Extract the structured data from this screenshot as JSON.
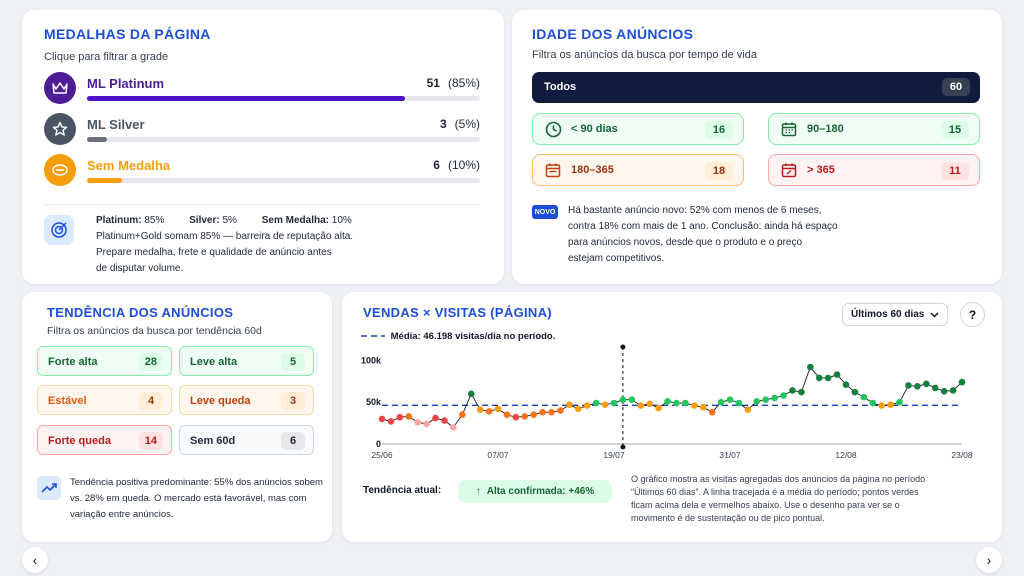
{
  "medals": {
    "title": "MEDALHAS DA PÁGINA",
    "subtitle": "Clique para filtrar a grade",
    "items": [
      {
        "name": "ML Platinum",
        "count": "51",
        "pct": "(85%)",
        "fraction": 0.85,
        "color": "#4c1d95",
        "fill": "#4f16c8"
      },
      {
        "name": "ML Silver",
        "count": "3",
        "pct": "(5%)",
        "fraction": 0.05,
        "color": "#4b5563",
        "fill": "#6b7280"
      },
      {
        "name": "Sem Medalha",
        "count": "6",
        "pct": "(10%)",
        "fraction": 0.1,
        "color": "#f59e0b",
        "fill": "#f59e0b"
      }
    ],
    "summary": {
      "platinum_label": "Platinum:",
      "platinum_value": "85%",
      "silver_label": "Silver:",
      "silver_value": "5%",
      "none_label": "Sem Medalha:",
      "none_value": "10%",
      "line1": "Platinum+Gold somam 85% — barreira de reputação alta.",
      "line2": "Prepare medalha, frete e qualidade de anúncio antes",
      "line3": "de disputar volume."
    },
    "icons": [
      "crown-icon",
      "star-icon",
      "no-medal-icon",
      "target-icon"
    ]
  },
  "age": {
    "title": "IDADE DOS ANÚNCIOS",
    "subtitle": "Filtra os anúncios da busca por tempo de vida",
    "all": {
      "label": "Todos",
      "count": "60"
    },
    "buckets": [
      {
        "label": "< 90 dias",
        "count": "16"
      },
      {
        "label": "90–180",
        "count": "15"
      },
      {
        "label": "180–365",
        "count": "18"
      },
      {
        "label": "> 365",
        "count": "11"
      }
    ],
    "badge": "NOVO",
    "note": [
      "Há bastante anúncio novo: 52% com menos de 6 meses,",
      "contra 18% com mais de 1 ano. Conclusão: ainda há espaço",
      "para anúncios novos, desde que o produto e o preço",
      "estejam competitivos."
    ]
  },
  "trend": {
    "title": "TENDÊNCIA DOS ANÚNCIOS",
    "subtitle": "Filtra os anúncios da busca por tendência 60d",
    "buttons": [
      {
        "label": "Forte alta",
        "count": "28"
      },
      {
        "label": "Leve alta",
        "count": "5"
      },
      {
        "label": "Estável",
        "count": "4"
      },
      {
        "label": "Leve queda",
        "count": "3"
      },
      {
        "label": "Forte queda",
        "count": "14"
      },
      {
        "label": "Sem 60d",
        "count": "6"
      }
    ],
    "note": [
      "Tendência positiva predominante: 55% dos anúncios sobem",
      "vs. 28% em queda. O mercado está favorável, mas com",
      "variação entre anúncios."
    ]
  },
  "sales": {
    "title": "VENDAS × VISITAS (PÁGINA)",
    "period_select": "Últimos 60 dias",
    "help": "?",
    "legend_label": "Média:",
    "legend_value": "46.198 visitas/dia no período.",
    "trend_label": "Tendência atual:",
    "trend_badge": "Alta confirmada: +46%",
    "note": [
      "O gráfico mostra as visitas agregadas dos anúncios da página no período",
      "“Últimos 60 dias”. A linha tracejada é a média do período; pontos verdes",
      "ficam acima dela e vermelhos abaixo. Use o desenho para ver se o",
      "movimento é de sustentação ou de pico pontual."
    ]
  },
  "chart_data": {
    "type": "line",
    "x_ticks": [
      "25/06",
      "07/07",
      "19/07",
      "31/07",
      "12/08",
      "23/08"
    ],
    "y_ticks": [
      "100k",
      "50k",
      "0"
    ],
    "ylim": [
      0,
      110000
    ],
    "average": 46198,
    "highlight_index": 27,
    "series": [
      {
        "values": [
          30000,
          27000,
          32000,
          33000,
          26000,
          24000,
          31000,
          28000,
          20000,
          35000,
          60000,
          41000,
          39000,
          42000,
          35000,
          32000,
          33000,
          35000,
          38000,
          38000,
          40000,
          47000,
          42000,
          46000,
          49000,
          47000,
          49000,
          53000,
          53000,
          46000,
          48000,
          43000,
          51000,
          49000,
          49000,
          46000,
          44000,
          38000,
          50000,
          53000,
          49000,
          41000,
          51000,
          53000,
          55000,
          58000,
          64000,
          62000,
          92000,
          79000,
          79000,
          83000,
          71000,
          62000,
          56000,
          49000,
          46000,
          47000,
          50000,
          70000,
          69000,
          72000,
          67000,
          63000,
          64000,
          74000
        ]
      }
    ]
  },
  "nav": {
    "prev": "‹",
    "next": "›"
  }
}
